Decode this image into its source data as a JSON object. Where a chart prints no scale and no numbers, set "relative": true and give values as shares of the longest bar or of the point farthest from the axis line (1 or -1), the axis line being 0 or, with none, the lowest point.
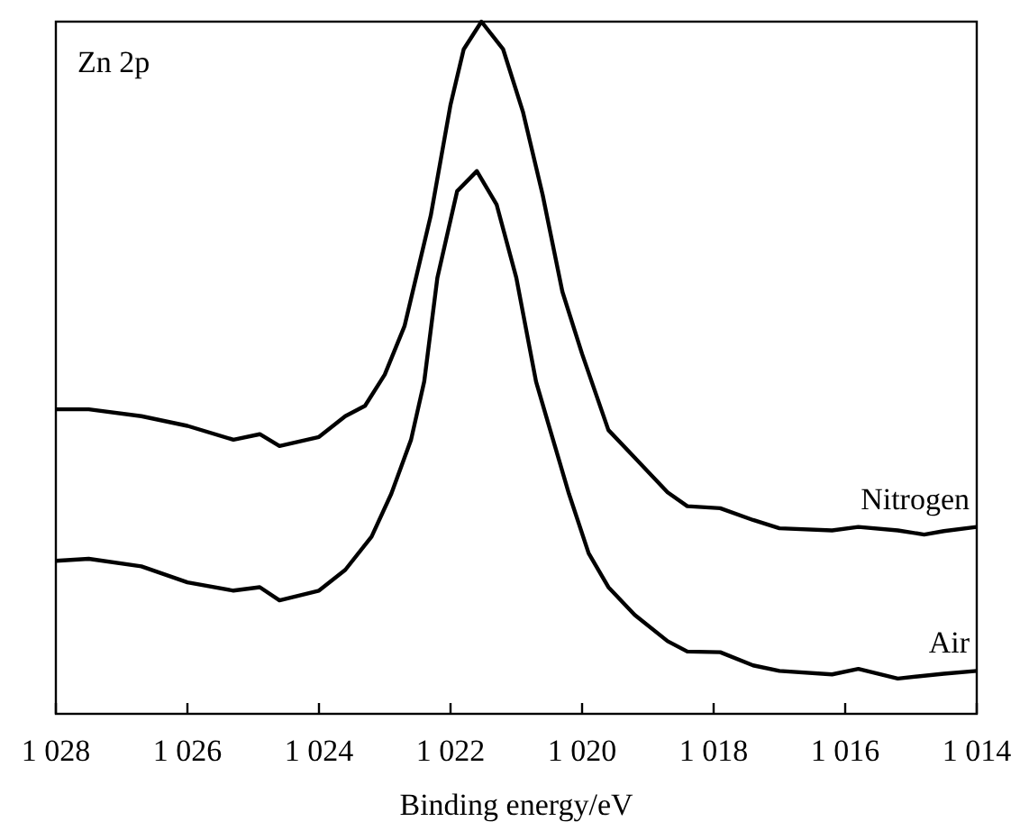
{
  "chart_data": {
    "type": "line",
    "title": "Zn 2p",
    "xlabel": "Binding energy/eV",
    "relative": true,
    "xlim": [
      1028,
      1014
    ],
    "xticks": [
      {
        "value": 1028,
        "label": "1 028"
      },
      {
        "value": 1026,
        "label": "1 026"
      },
      {
        "value": 1024,
        "label": "1 024"
      },
      {
        "value": 1022,
        "label": "1 022"
      },
      {
        "value": 1020,
        "label": "1 020"
      },
      {
        "value": 1018,
        "label": "1 018"
      },
      {
        "value": 1016,
        "label": "1 016"
      },
      {
        "value": 1014,
        "label": "1 014"
      }
    ],
    "grid": false,
    "marker": "none",
    "line_style": "solid",
    "series": [
      {
        "name": "Nitrogen",
        "color": "#000000",
        "x": [
          1028,
          1027.5,
          1026.7,
          1026,
          1025.3,
          1024.9,
          1024.6,
          1024,
          1023.6,
          1023.3,
          1023,
          1022.7,
          1022.3,
          1022,
          1021.8,
          1021.53,
          1021.2,
          1020.9,
          1020.6,
          1020.3,
          1020,
          1019.6,
          1019.2,
          1018.7,
          1018.4,
          1017.9,
          1017.4,
          1017,
          1016.2,
          1015.8,
          1015.2,
          1014.8,
          1014.5,
          1014
        ],
        "values": [
          0.44,
          0.44,
          0.43,
          0.416,
          0.396,
          0.404,
          0.387,
          0.4,
          0.43,
          0.445,
          0.49,
          0.56,
          0.72,
          0.88,
          0.96,
          1,
          0.96,
          0.87,
          0.75,
          0.61,
          0.52,
          0.41,
          0.37,
          0.32,
          0.3,
          0.297,
          0.28,
          0.268,
          0.265,
          0.27,
          0.265,
          0.259,
          0.264,
          0.27
        ]
      },
      {
        "name": "Air",
        "color": "#000000",
        "x": [
          1028,
          1027.5,
          1026.7,
          1026,
          1025.3,
          1024.9,
          1024.6,
          1024,
          1023.6,
          1023.2,
          1022.9,
          1022.6,
          1022.4,
          1022.2,
          1021.9,
          1021.6,
          1021.3,
          1021,
          1020.7,
          1020.5,
          1020.2,
          1019.9,
          1019.6,
          1019.2,
          1018.7,
          1018.4,
          1017.9,
          1017.4,
          1017,
          1016.2,
          1015.8,
          1015.2,
          1014.5,
          1014
        ],
        "values": [
          0.221,
          0.224,
          0.213,
          0.19,
          0.178,
          0.183,
          0.164,
          0.178,
          0.208,
          0.256,
          0.318,
          0.396,
          0.48,
          0.63,
          0.755,
          0.784,
          0.736,
          0.63,
          0.48,
          0.415,
          0.318,
          0.232,
          0.183,
          0.143,
          0.105,
          0.09,
          0.089,
          0.07,
          0.062,
          0.057,
          0.065,
          0.051,
          0.058,
          0.062
        ]
      }
    ]
  }
}
